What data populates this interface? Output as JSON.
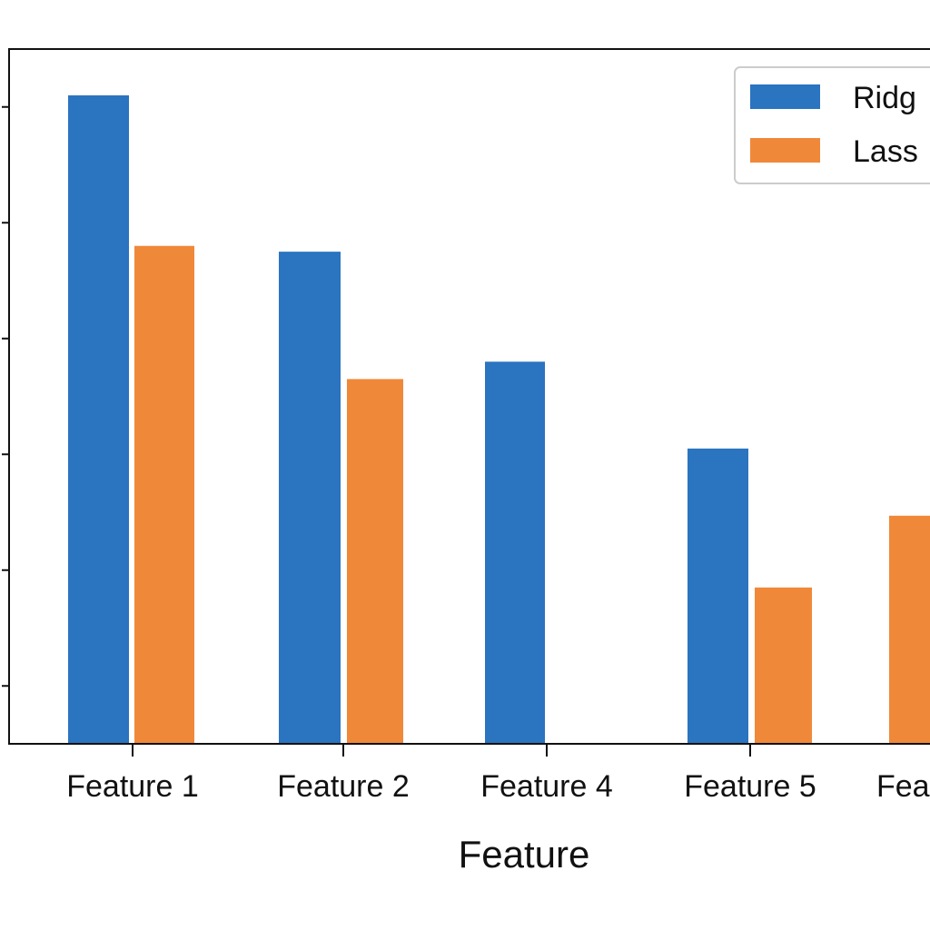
{
  "chart_data": {
    "type": "bar",
    "title": "",
    "xlabel": "Feature",
    "ylabel": "",
    "categories": [
      "Feature 1",
      "Feature 2",
      "Feature 4",
      "Feature 5",
      "Fea"
    ],
    "series": [
      {
        "name": "Ridg",
        "color": "#2a74c0",
        "values": [
          0.56,
          0.425,
          0.33,
          0.255,
          null
        ]
      },
      {
        "name": "Lass",
        "color": "#f0883a",
        "values": [
          0.43,
          0.315,
          null,
          0.135,
          0.197
        ]
      }
    ],
    "ylim": [
      0,
      0.6
    ],
    "y_ticks": [
      0.05,
      0.15,
      0.25,
      0.35,
      0.45,
      0.55
    ],
    "y_tick_labels_visible": false,
    "grid": false,
    "legend_position": "top-right"
  }
}
